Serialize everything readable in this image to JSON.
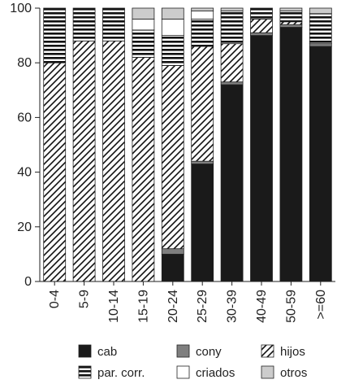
{
  "chart_data": {
    "type": "bar",
    "stacked": true,
    "percent": true,
    "categories": [
      "0-4",
      "5-9",
      "10-14",
      "15-19",
      "20-24",
      "25-29",
      "30-39",
      "40-49",
      "50-59",
      ">=60"
    ],
    "ylim": [
      0,
      100
    ],
    "yticks": [
      0,
      20,
      40,
      60,
      80,
      100
    ],
    "ytick_labels": [
      "0",
      "20",
      "40",
      "60",
      "80",
      "100"
    ],
    "grid": false,
    "legend_position": "bottom",
    "series": [
      {
        "name": "cab",
        "pattern": "solid-black",
        "values": [
          0,
          0,
          0,
          0,
          10,
          43,
          72,
          90,
          93,
          86
        ]
      },
      {
        "name": "cony",
        "pattern": "solid-gray",
        "values": [
          0,
          0,
          0,
          0,
          2,
          1,
          1,
          1,
          1,
          1
        ]
      },
      {
        "name": "hijos",
        "pattern": "diagonal",
        "values": [
          80,
          88,
          88,
          82,
          67,
          42,
          14,
          5,
          1,
          0
        ]
      },
      {
        "name": "par. corr.",
        "pattern": "horizontal",
        "values": [
          20,
          12,
          12,
          10,
          11,
          10,
          12,
          4,
          4,
          11
        ]
      },
      {
        "name": "criados",
        "pattern": "white",
        "values": [
          0,
          0,
          0,
          4,
          6,
          3,
          0,
          0,
          0,
          0
        ]
      },
      {
        "name": "otros",
        "pattern": "light-gray",
        "values": [
          0,
          0,
          0,
          4,
          4,
          1,
          1,
          0,
          1,
          2
        ]
      }
    ]
  }
}
